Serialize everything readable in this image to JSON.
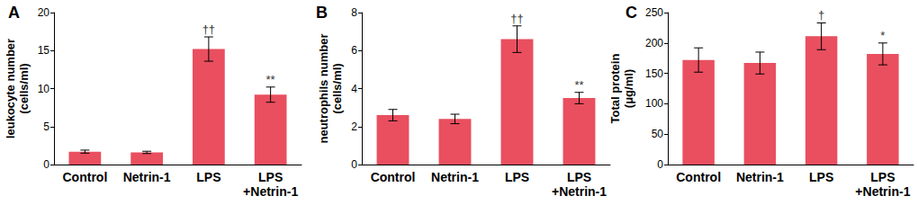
{
  "chart_data": [
    {
      "type": "bar",
      "title": "A",
      "categories": [
        "Control",
        "Netrin-1",
        "LPS",
        "LPS\n+Netrin-1"
      ],
      "values": [
        1.7,
        1.6,
        15.2,
        9.2
      ],
      "errors": [
        0.2,
        0.15,
        1.6,
        1.0
      ],
      "color": "#e94f5f",
      "y_label": "leukocyte number\n(cells/ml)",
      "ylim": [
        0,
        20
      ],
      "yticks": [
        0,
        5,
        10,
        15,
        20
      ],
      "grid": false,
      "annotations": [
        {
          "category": "LPS",
          "text": "††"
        },
        {
          "category": "LPS\n+Netrin-1",
          "text": "**"
        }
      ]
    },
    {
      "type": "bar",
      "title": "B",
      "categories": [
        "Control",
        "Netrin-1",
        "LPS",
        "LPS\n+Netrin-1"
      ],
      "values": [
        2.6,
        2.4,
        6.6,
        3.5
      ],
      "errors": [
        0.3,
        0.25,
        0.7,
        0.3
      ],
      "color": "#e94f5f",
      "y_label": "neutrophils number\n(cells/ml)",
      "ylim": [
        0,
        8
      ],
      "yticks": [
        0,
        2,
        4,
        6,
        8
      ],
      "grid": false,
      "annotations": [
        {
          "category": "LPS",
          "text": "††"
        },
        {
          "category": "LPS\n+Netrin-1",
          "text": "**"
        }
      ]
    },
    {
      "type": "bar",
      "title": "C",
      "categories": [
        "Control",
        "Netrin-1",
        "LPS",
        "LPS\n+Netrin-1"
      ],
      "values": [
        172,
        167,
        211,
        182
      ],
      "errors": [
        20,
        18,
        22,
        18
      ],
      "color": "#e94f5f",
      "y_label": "Total protein\n(μg/ml)",
      "ylim": [
        0,
        250
      ],
      "yticks": [
        0,
        50,
        100,
        150,
        200,
        250
      ],
      "grid": false,
      "annotations": [
        {
          "category": "LPS",
          "text": "†"
        },
        {
          "category": "LPS\n+Netrin-1",
          "text": "*"
        }
      ]
    }
  ]
}
